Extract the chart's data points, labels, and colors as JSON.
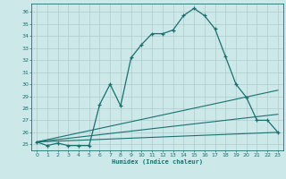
{
  "xlabel": "Humidex (Indice chaleur)",
  "ylabel": "",
  "background_color": "#cce8e8",
  "grid_color": "#b0d4d4",
  "line_color": "#1a7070",
  "xlim": [
    -0.5,
    23.5
  ],
  "ylim": [
    24.5,
    36.7
  ],
  "yticks": [
    25,
    26,
    27,
    28,
    29,
    30,
    31,
    32,
    33,
    34,
    35,
    36
  ],
  "xticks": [
    0,
    1,
    2,
    3,
    4,
    5,
    6,
    7,
    8,
    9,
    10,
    11,
    12,
    13,
    14,
    15,
    16,
    17,
    18,
    19,
    20,
    21,
    22,
    23
  ],
  "main_x": [
    0,
    1,
    2,
    3,
    4,
    5,
    6,
    7,
    8,
    9,
    10,
    11,
    12,
    13,
    14,
    15,
    16,
    17,
    18,
    19,
    20,
    21,
    22,
    23
  ],
  "main_y": [
    25.2,
    24.9,
    25.1,
    24.9,
    24.9,
    24.9,
    28.3,
    30.0,
    28.2,
    32.2,
    33.3,
    34.2,
    34.2,
    34.5,
    35.7,
    36.3,
    35.7,
    34.6,
    32.3,
    30.0,
    28.9,
    27.0,
    27.0,
    26.0
  ],
  "line2_x": [
    0,
    23
  ],
  "line2_y": [
    25.2,
    29.5
  ],
  "line3_x": [
    0,
    23
  ],
  "line3_y": [
    25.2,
    27.5
  ],
  "line4_x": [
    0,
    23
  ],
  "line4_y": [
    25.2,
    26.0
  ]
}
